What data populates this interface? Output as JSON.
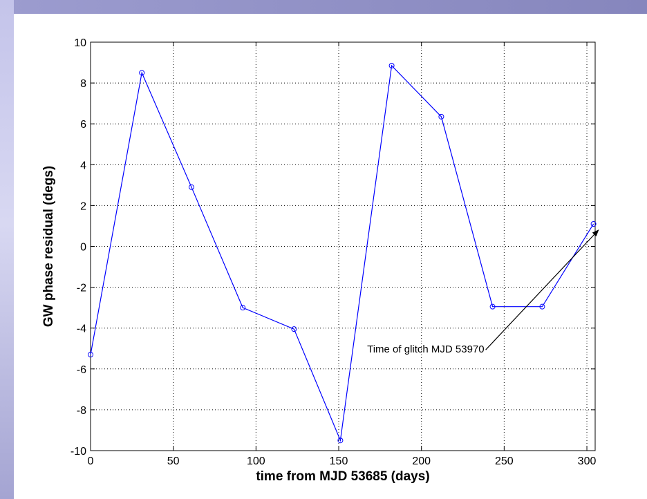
{
  "chart_data": {
    "type": "line",
    "title": "",
    "xlabel": "time from MJD 53685 (days)",
    "ylabel": "GW phase residual (degs)",
    "xlim": [
      0,
      305
    ],
    "ylim": [
      -10,
      10
    ],
    "xticks": [
      0,
      50,
      100,
      150,
      200,
      250,
      300
    ],
    "yticks": [
      -10,
      -8,
      -6,
      -4,
      -2,
      0,
      2,
      4,
      6,
      8,
      10
    ],
    "grid": true,
    "series": [
      {
        "color": "#0000ff",
        "marker": "circle",
        "x": [
          0,
          31,
          61,
          92,
          123,
          151,
          182,
          212,
          243,
          273,
          304
        ],
        "y": [
          -5.3,
          8.5,
          2.9,
          -3.0,
          -4.05,
          -9.5,
          8.85,
          6.35,
          -2.95,
          -2.95,
          1.1
        ]
      }
    ],
    "annotations": [
      {
        "text": "Time of glitch MJD 53970",
        "text_at": [
          238,
          -5.2
        ],
        "arrow_to": [
          307,
          0.8
        ]
      }
    ]
  },
  "colors": {
    "line": "#0000ff",
    "frame_top": "#9c9ccf",
    "frame_left": "#c4c4ea"
  }
}
